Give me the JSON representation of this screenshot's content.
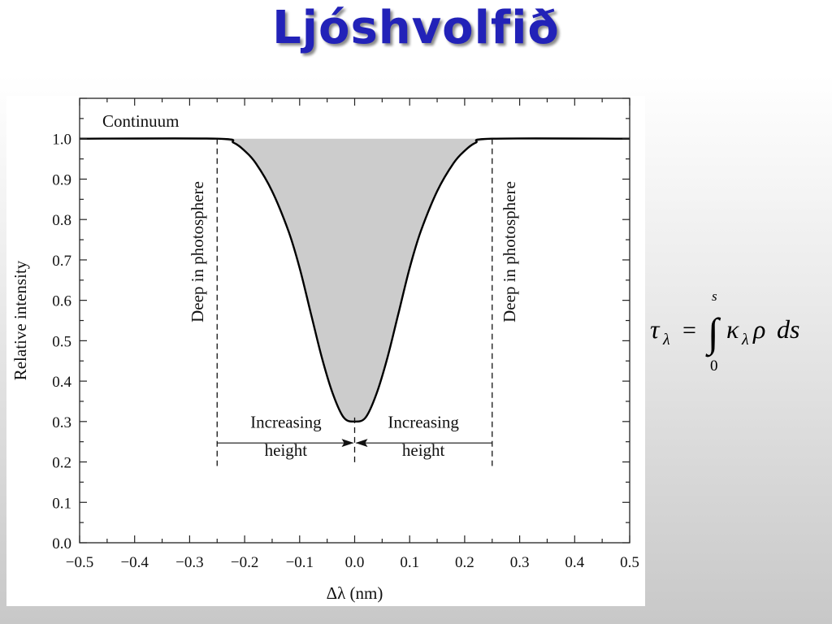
{
  "slide": {
    "title": "Ljóshvolfið"
  },
  "formula": {
    "lhs": "τ",
    "lhs_subscript": "λ",
    "equals": "=",
    "integral": "∫",
    "upper_limit": "s",
    "lower_limit": "0",
    "kappa": "κ",
    "kappa_subscript": "λ",
    "rho": "ρ",
    "differential": "ds"
  },
  "chart_data": {
    "type": "line",
    "xlabel": "Δλ (nm)",
    "ylabel": "Relative intensity",
    "xlim": [
      -0.5,
      0.5
    ],
    "ylim": [
      0.0,
      1.1
    ],
    "x_ticks": [
      "−0.5",
      "−0.4",
      "−0.3",
      "−0.2",
      "−0.1",
      "0.0",
      "0.1",
      "0.2",
      "0.3",
      "0.4",
      "0.5"
    ],
    "y_ticks": [
      "0.0",
      "0.1",
      "0.2",
      "0.3",
      "0.4",
      "0.5",
      "0.6",
      "0.7",
      "0.8",
      "0.9",
      "1.0"
    ],
    "grid": false,
    "series": [
      {
        "x": [
          -0.5,
          -0.25,
          -0.22,
          -0.2,
          -0.18,
          -0.15,
          -0.12,
          -0.1,
          -0.08,
          -0.06,
          -0.04,
          -0.02,
          0.0,
          0.02,
          0.04,
          0.06,
          0.08,
          0.1,
          0.12,
          0.15,
          0.18,
          0.2,
          0.22,
          0.25,
          0.5
        ],
        "y": [
          1.0,
          1.0,
          0.99,
          0.97,
          0.94,
          0.87,
          0.77,
          0.68,
          0.57,
          0.46,
          0.37,
          0.31,
          0.3,
          0.31,
          0.37,
          0.46,
          0.57,
          0.68,
          0.77,
          0.87,
          0.94,
          0.97,
          0.99,
          1.0,
          1.0
        ],
        "fill_under_continuum": true,
        "fill_color": "#cccccc",
        "line_color": "#000000"
      }
    ],
    "continuum_level": 1.0,
    "dashed_lines_x": [
      -0.25,
      0.0,
      0.25
    ],
    "annotations": {
      "continuum": "Continuum",
      "deep_left": "Deep in photosphere",
      "deep_right": "Deep in photosphere",
      "increasing_left": "Increasing",
      "height_left": "height",
      "increasing_right": "Increasing",
      "height_right": "height"
    }
  }
}
